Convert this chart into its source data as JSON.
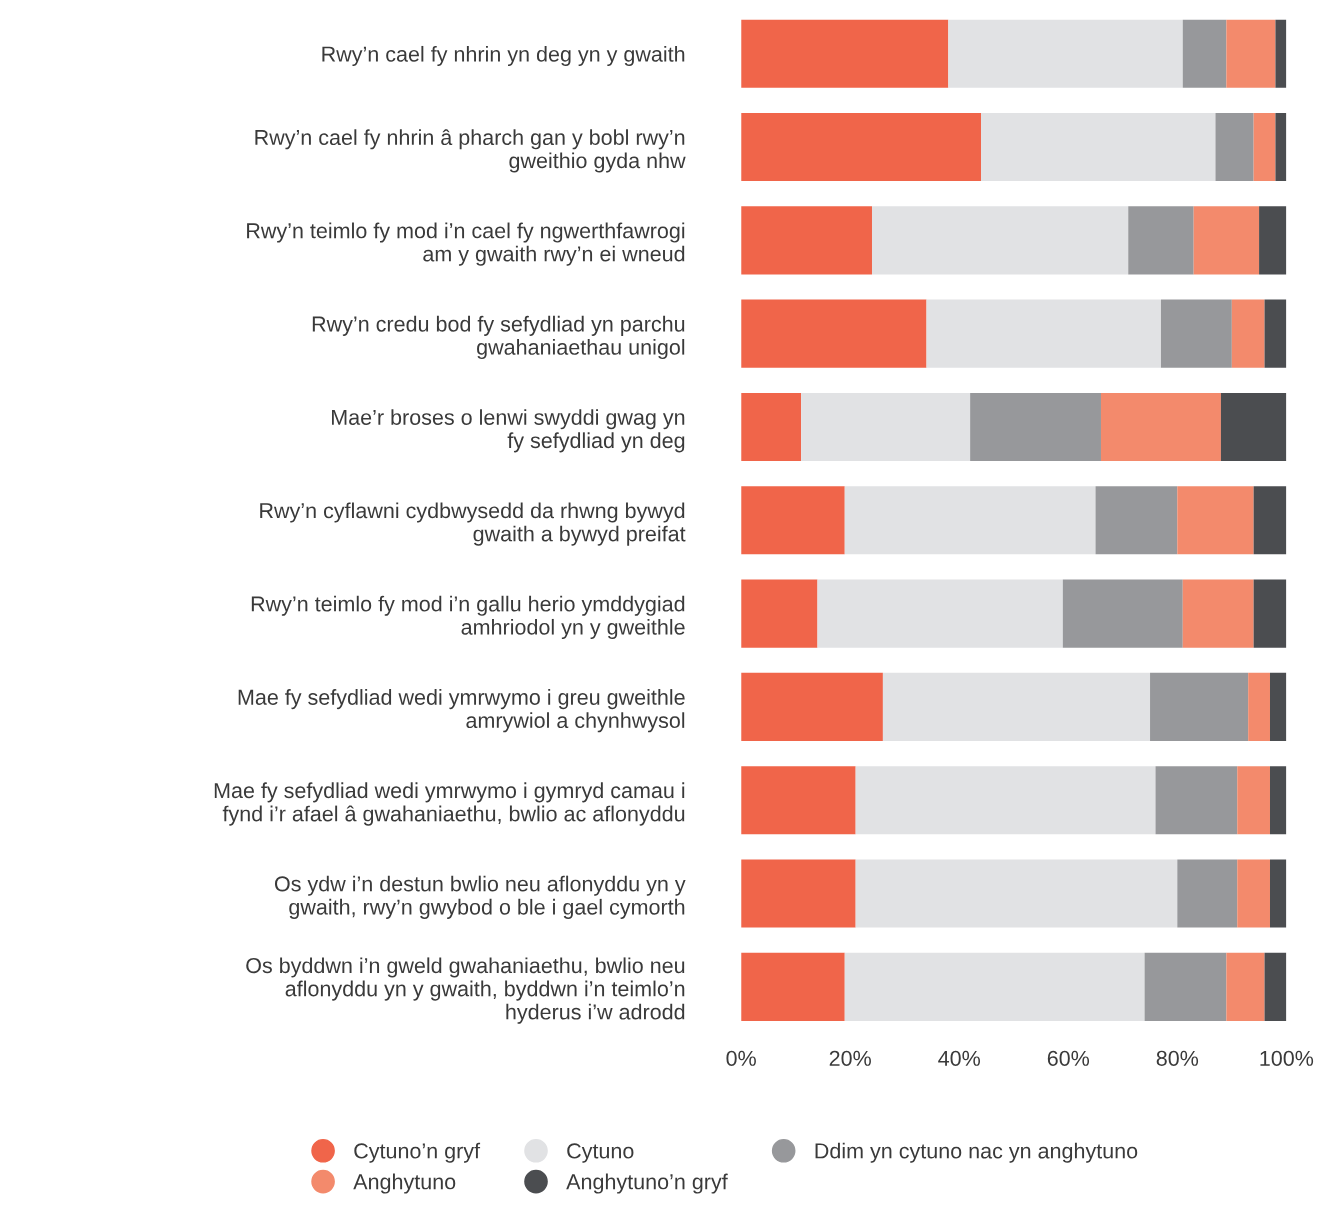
{
  "chart_data": {
    "type": "bar",
    "orientation": "horizontal",
    "stacked": true,
    "categories": [
      "Rwy’n cael fy nhrin yn deg yn y gwaith",
      "Rwy’n cael fy nhrin â pharch gan y bobl rwy’n\ngweithio gyda nhw",
      "Rwy’n teimlo fy mod i’n cael fy ngwerthfawrogi\nam y gwaith rwy’n ei wneud",
      "Rwy’n credu bod fy sefydliad yn parchu\ngwahaniaethau unigol",
      "Mae’r broses o lenwi swyddi gwag yn\nfy sefydliad yn deg",
      "Rwy’n cyflawni cydbwysedd da rhwng bywyd\ngwaith a bywyd preifat",
      "Rwy’n teimlo fy mod i’n gallu herio ymddygiad\namhriodol yn y gweithle",
      "Mae fy sefydliad wedi ymrwymo i greu gweithle\namrywiol a chynhwysol",
      "Mae fy sefydliad wedi ymrwymo i gymryd camau i\nfynd i’r afael â gwahaniaethu, bwlio ac aflonyddu",
      "Os ydw i’n destun bwlio neu aflonyddu yn y\ngwaith, rwy’n gwybod o ble i gael cymorth",
      "Os byddwn i’n gweld gwahaniaethu, bwlio neu\naflonyddu yn y gwaith, byddwn i’n teimlo’n\nhyderus i’w adrodd"
    ],
    "series": [
      {
        "name": "Cytuno’n gryf",
        "color": "#f0654a",
        "values": [
          38,
          44,
          24,
          34,
          11,
          19,
          14,
          26,
          21,
          21,
          19
        ]
      },
      {
        "name": "Cytuno",
        "color": "#e1e2e4",
        "values": [
          43,
          43,
          47,
          43,
          31,
          46,
          45,
          49,
          55,
          59,
          55
        ]
      },
      {
        "name": "Ddim yn cytuno nac yn anghytuno",
        "color": "#97989b",
        "values": [
          8,
          7,
          12,
          13,
          24,
          15,
          22,
          18,
          15,
          11,
          15
        ]
      },
      {
        "name": "Anghytuno",
        "color": "#f38a6c",
        "values": [
          9,
          4,
          12,
          6,
          22,
          14,
          13,
          4,
          6,
          6,
          7
        ]
      },
      {
        "name": "Anghytuno’n gryf",
        "color": "#4b4d50",
        "values": [
          2,
          2,
          5,
          4,
          12,
          6,
          6,
          3,
          3,
          3,
          4
        ]
      }
    ],
    "xlim": [
      0,
      100
    ],
    "xticks": [
      {
        "value": 0,
        "label": "0%"
      },
      {
        "value": 20,
        "label": "20%"
      },
      {
        "value": 40,
        "label": "40%"
      },
      {
        "value": 60,
        "label": "60%"
      },
      {
        "value": 80,
        "label": "80%"
      },
      {
        "value": 100,
        "label": "100%"
      }
    ],
    "grid": false,
    "legend": "bottom",
    "marker": "circle"
  }
}
